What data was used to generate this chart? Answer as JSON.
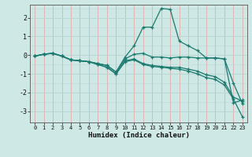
{
  "xlabel": "Humidex (Indice chaleur)",
  "bg_color": "#cde8e5",
  "line_color": "#1a7a6e",
  "grid_color_vert": "#e8a0a0",
  "grid_color_horiz": "#b8d8d5",
  "xlim": [
    -0.5,
    23.5
  ],
  "ylim": [
    -3.6,
    2.7
  ],
  "xticks": [
    0,
    1,
    2,
    3,
    4,
    5,
    6,
    7,
    8,
    9,
    10,
    11,
    12,
    13,
    14,
    15,
    16,
    17,
    18,
    19,
    20,
    21,
    22,
    23
  ],
  "yticks": [
    -3,
    -2,
    -1,
    0,
    1,
    2
  ],
  "curves": [
    {
      "x": [
        0,
        1,
        2,
        3,
        4,
        5,
        6,
        7,
        8,
        9,
        10,
        11,
        12,
        13,
        14,
        15,
        16,
        17,
        18,
        19,
        20,
        21,
        22,
        23
      ],
      "y": [
        -0.05,
        0.05,
        0.1,
        -0.05,
        -0.25,
        -0.3,
        -0.35,
        -0.45,
        -0.55,
        -0.9,
        -0.1,
        0.5,
        1.5,
        1.5,
        2.5,
        2.45,
        0.75,
        0.5,
        0.25,
        -0.15,
        -0.15,
        -0.2,
        -2.55,
        -2.4
      ]
    },
    {
      "x": [
        0,
        1,
        2,
        3,
        4,
        5,
        6,
        7,
        8,
        9,
        10,
        11,
        12,
        13,
        14,
        15,
        16,
        17,
        18,
        19,
        20,
        21,
        22,
        23
      ],
      "y": [
        -0.05,
        0.05,
        0.1,
        -0.05,
        -0.25,
        -0.3,
        -0.35,
        -0.45,
        -0.55,
        -0.9,
        -0.2,
        0.05,
        0.1,
        -0.1,
        -0.1,
        -0.15,
        -0.1,
        -0.1,
        -0.15,
        -0.15,
        -0.15,
        -0.2,
        -1.5,
        -2.6
      ]
    },
    {
      "x": [
        0,
        1,
        2,
        3,
        4,
        5,
        6,
        7,
        8,
        9,
        10,
        11,
        12,
        13,
        14,
        15,
        16,
        17,
        18,
        19,
        20,
        21,
        22,
        23
      ],
      "y": [
        -0.05,
        0.05,
        0.1,
        -0.05,
        -0.25,
        -0.3,
        -0.35,
        -0.5,
        -0.65,
        -1.0,
        -0.3,
        -0.2,
        -0.45,
        -0.55,
        -0.6,
        -0.65,
        -0.65,
        -0.75,
        -0.85,
        -1.05,
        -1.15,
        -1.45,
        -2.25,
        -2.45
      ]
    },
    {
      "x": [
        0,
        1,
        2,
        3,
        4,
        5,
        6,
        7,
        8,
        9,
        10,
        11,
        12,
        13,
        14,
        15,
        16,
        17,
        18,
        19,
        20,
        21,
        22,
        23
      ],
      "y": [
        -0.05,
        0.05,
        0.1,
        -0.05,
        -0.25,
        -0.3,
        -0.35,
        -0.5,
        -0.65,
        -1.0,
        -0.35,
        -0.25,
        -0.5,
        -0.6,
        -0.65,
        -0.7,
        -0.75,
        -0.85,
        -1.0,
        -1.2,
        -1.3,
        -1.6,
        -2.35,
        -3.3
      ]
    }
  ]
}
